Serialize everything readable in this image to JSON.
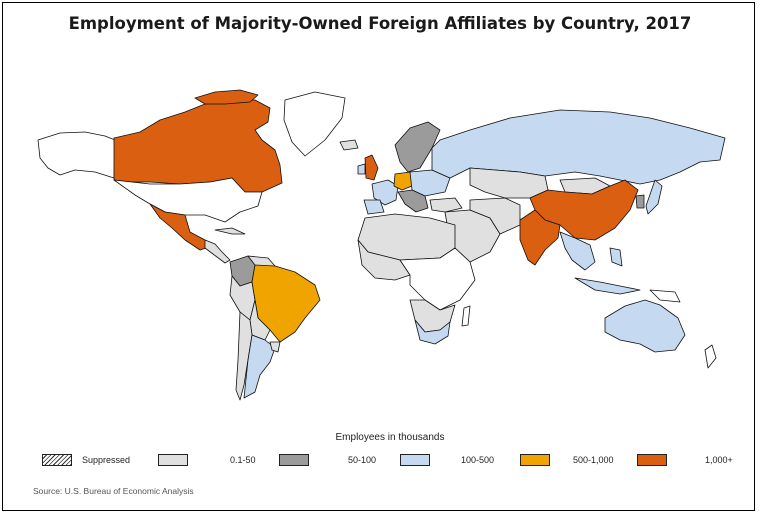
{
  "title": "Employment of Majority-Owned Foreign Affiliates by Country, 2017",
  "legend": {
    "title": "Employees in thousands",
    "items": [
      {
        "label": "Suppressed",
        "color": "hatch"
      },
      {
        "label": "0.1-50",
        "color": "#e0e0e0"
      },
      {
        "label": "50-100",
        "color": "#9b9b9b"
      },
      {
        "label": "100-500",
        "color": "#c5d9f1"
      },
      {
        "label": "500-1,000",
        "color": "#f0a400"
      },
      {
        "label": "1,000+",
        "color": "#db5f10"
      }
    ]
  },
  "source": "Source: U.S. Bureau of Economic Analysis",
  "colors": {
    "none": "#ffffff",
    "low": "#e0e0e0",
    "mid": "#9b9b9b",
    "blue": "#c5d9f1",
    "gold": "#f0a400",
    "orange": "#db5f10",
    "outline": "#111111"
  },
  "countries": [
    {
      "name": "Canada",
      "category": "1,000+"
    },
    {
      "name": "Mexico",
      "category": "1,000+"
    },
    {
      "name": "United Kingdom",
      "category": "1,000+"
    },
    {
      "name": "China",
      "category": "1,000+"
    },
    {
      "name": "India",
      "category": "1,000+"
    },
    {
      "name": "Germany",
      "category": "500-1,000"
    },
    {
      "name": "Brazil",
      "category": "500-1,000"
    },
    {
      "name": "Russia",
      "category": "100-500"
    },
    {
      "name": "Australia",
      "category": "100-500"
    },
    {
      "name": "France",
      "category": "100-500"
    },
    {
      "name": "Argentina",
      "category": "100-500"
    },
    {
      "name": "South Africa",
      "category": "100-500"
    },
    {
      "name": "Japan",
      "category": "100-500"
    },
    {
      "name": "Colombia",
      "category": "50-100"
    },
    {
      "name": "Sweden",
      "category": "50-100"
    },
    {
      "name": "Saudi Arabia",
      "category": "0.1-50"
    },
    {
      "name": "Egypt",
      "category": "0.1-50"
    },
    {
      "name": "Kazakhstan",
      "category": "0.1-50"
    }
  ]
}
